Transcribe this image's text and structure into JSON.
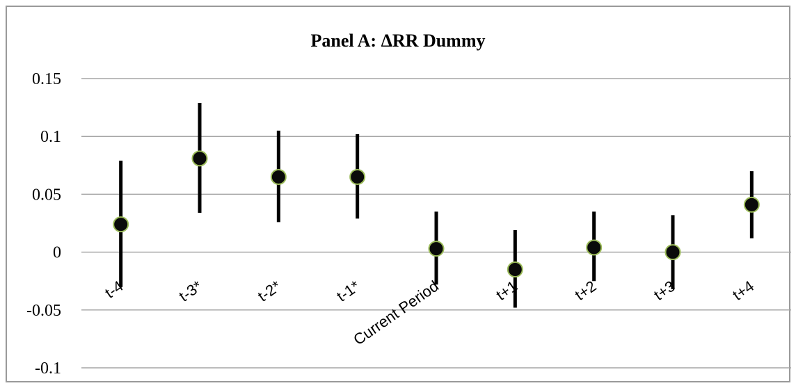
{
  "chart_data": {
    "type": "scatter",
    "title": "Panel A: ΔRR Dummy",
    "xlabel": "",
    "ylabel": "",
    "ylim": [
      -0.1,
      0.15
    ],
    "yticks": [
      0.15,
      0.1,
      0.05,
      0,
      -0.05,
      -0.1
    ],
    "ytick_labels": [
      "0.15",
      "0.1",
      "0.05",
      "0",
      "-0.05",
      "-0.1"
    ],
    "grid": true,
    "categories": [
      "t-4",
      "t-3*",
      "t-2*",
      "t-1*",
      "Current Period",
      "t+1",
      "t+2",
      "t+3",
      "t+4"
    ],
    "series": [
      {
        "estimates": [
          0.024,
          0.081,
          0.065,
          0.065,
          0.003,
          -0.015,
          0.004,
          0.0,
          0.041
        ],
        "ci_lower": [
          -0.03,
          0.034,
          0.026,
          0.029,
          -0.028,
          -0.048,
          -0.025,
          -0.032,
          0.012
        ],
        "ci_upper": [
          0.079,
          0.129,
          0.105,
          0.102,
          0.035,
          0.019,
          0.035,
          0.032,
          0.07
        ]
      }
    ],
    "colors": {
      "marker_fill": "#0a0a0a",
      "marker_edge": "#9bbb59",
      "error_bar": "#000000",
      "gridline": "#a6a6a6",
      "frame": "#9a9a9a"
    }
  }
}
